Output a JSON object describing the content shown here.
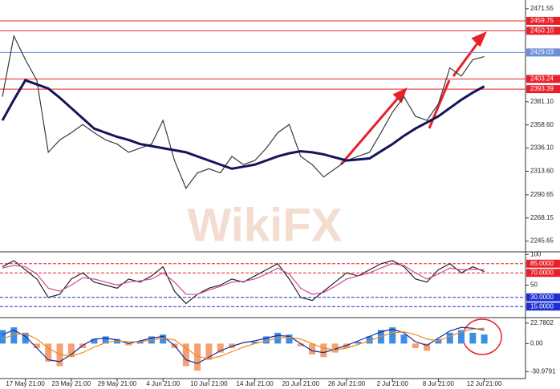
{
  "chart_data": [
    {
      "type": "line",
      "watermark": "WikiFX",
      "categories": [
        null,
        null,
        "17 May 21:00",
        null,
        null,
        null,
        "23 May 21:00",
        null,
        null,
        null,
        "29 May 21:00",
        null,
        null,
        null,
        "4 Jun 21:00",
        null,
        null,
        null,
        "10 Jun 21:00",
        null,
        null,
        null,
        "14 Jun 21:00",
        null,
        null,
        null,
        "20 Jun 21:00",
        null,
        null,
        null,
        "26 Jun 21:00",
        null,
        null,
        null,
        "2 Jul 21:00",
        null,
        null,
        null,
        "8 Jul 21:00",
        null,
        null,
        null,
        "12 Jul 21:00"
      ],
      "series": [
        {
          "color": "#3a3a3a",
          "values": [
            2386,
            2445,
            2422,
            2402,
            2332,
            2344,
            2351,
            2359,
            2351,
            2344,
            2340,
            2332,
            2336,
            2340,
            2363,
            2324,
            2297,
            2312,
            2316,
            2312,
            2328,
            2320,
            2324,
            2336,
            2351,
            2359,
            2328,
            2320,
            2308,
            2316,
            2324,
            2328,
            2332,
            2351,
            2371,
            2386,
            2367,
            2363,
            2379,
            2414,
            2406,
            2422,
            2425
          ]
        },
        {
          "color": "#14145a",
          "values": [
            2363,
            2383,
            2402,
            2398,
            2394,
            2385,
            2375,
            2365,
            2355,
            2351,
            2347,
            2344,
            2340,
            2338,
            2336,
            2334,
            2332,
            2328,
            2324,
            2320,
            2316,
            2318,
            2320,
            2324,
            2328,
            2331,
            2333,
            2332,
            2330,
            2327,
            2324,
            2325,
            2326,
            2333,
            2340,
            2348,
            2355,
            2361,
            2367,
            2375,
            2383,
            2390,
            2396
          ]
        }
      ],
      "levels": [
        {
          "value": 2459.75,
          "label": "2459.75",
          "color": "#e8202a"
        },
        {
          "value": 2450.1,
          "label": "2450.10",
          "color": "#e8202a"
        },
        {
          "value": 2429.03,
          "label": "2429.03",
          "color": "#6d8fd8"
        },
        {
          "value": 2403.24,
          "label": "2403.24",
          "color": "#e8202a"
        },
        {
          "value": 2393.39,
          "label": "2393.39",
          "color": "#e8202a"
        }
      ],
      "ylim": [
        2236,
        2480
      ],
      "yticks": [
        2471.55,
        {
          "value": 2381.1,
          "label": "2381.10"
        },
        {
          "value": 2358.6,
          "label": "2358.60"
        },
        {
          "value": 2336.1,
          "label": "2336.10"
        },
        {
          "value": 2313.6,
          "label": "2313.60"
        },
        2290.65,
        2268.15,
        2245.65
      ]
    },
    {
      "type": "line",
      "series": [
        {
          "color": "#222222",
          "values": [
            80,
            90,
            75,
            60,
            30,
            35,
            60,
            70,
            55,
            50,
            45,
            60,
            55,
            65,
            80,
            40,
            20,
            35,
            45,
            50,
            60,
            55,
            65,
            75,
            85,
            60,
            30,
            25,
            40,
            55,
            70,
            65,
            75,
            85,
            90,
            80,
            60,
            55,
            75,
            85,
            70,
            80,
            72
          ]
        },
        {
          "color": "#d04a8a",
          "values": [
            78,
            82,
            80,
            68,
            45,
            40,
            50,
            62,
            60,
            55,
            50,
            55,
            57,
            60,
            70,
            55,
            35,
            35,
            42,
            48,
            55,
            56,
            60,
            68,
            78,
            68,
            45,
            35,
            38,
            48,
            60,
            65,
            70,
            78,
            85,
            82,
            70,
            60,
            68,
            78,
            75,
            76,
            75
          ]
        }
      ],
      "levels": [
        {
          "value": 85,
          "label": "85.0000",
          "color": "#e8202a"
        },
        {
          "value": 70,
          "label": "70.0000",
          "color": "#e8202a"
        },
        {
          "value": 30,
          "label": "30.0000",
          "color": "#2030d0"
        },
        {
          "value": 15,
          "label": "15.0000",
          "color": "#2030d0"
        }
      ],
      "ylim": [
        -3,
        103
      ],
      "yticks": [
        100,
        50
      ]
    },
    {
      "type": "bar",
      "pos_color": "#3a8ee8",
      "neg_color": "#f4a070",
      "values": [
        15,
        18,
        12,
        -5,
        -20,
        -25,
        -15,
        -5,
        5,
        8,
        5,
        -2,
        3,
        8,
        10,
        -5,
        -25,
        -30,
        -18,
        -10,
        -5,
        0,
        2,
        8,
        12,
        10,
        -3,
        -12,
        -15,
        -10,
        -5,
        2,
        8,
        15,
        18,
        10,
        -5,
        -8,
        5,
        12,
        15,
        12,
        10
      ],
      "series": [
        {
          "color": "#1a2a9a",
          "values": [
            10,
            15,
            8,
            -5,
            -18,
            -20,
            -12,
            -2,
            5,
            6,
            4,
            0,
            3,
            6,
            8,
            -2,
            -18,
            -22,
            -15,
            -8,
            -3,
            1,
            3,
            6,
            9,
            8,
            0,
            -8,
            -10,
            -6,
            -2,
            3,
            8,
            13,
            16,
            12,
            2,
            -2,
            6,
            14,
            18,
            17,
            15
          ]
        },
        {
          "color": "#f08a20",
          "values": [
            5,
            10,
            11,
            5,
            -5,
            -12,
            -14,
            -10,
            -4,
            1,
            3,
            2,
            2,
            4,
            6,
            4,
            -5,
            -14,
            -17,
            -14,
            -9,
            -4,
            0,
            3,
            6,
            7,
            5,
            0,
            -5,
            -7,
            -5,
            -1,
            3,
            8,
            12,
            13,
            10,
            5,
            3,
            8,
            13,
            16,
            17
          ]
        }
      ],
      "ylim": [
        -37,
        27
      ],
      "yticks": [
        22.7802,
        {
          "value": 0,
          "label": "0.00"
        },
        -30.9791
      ]
    }
  ]
}
